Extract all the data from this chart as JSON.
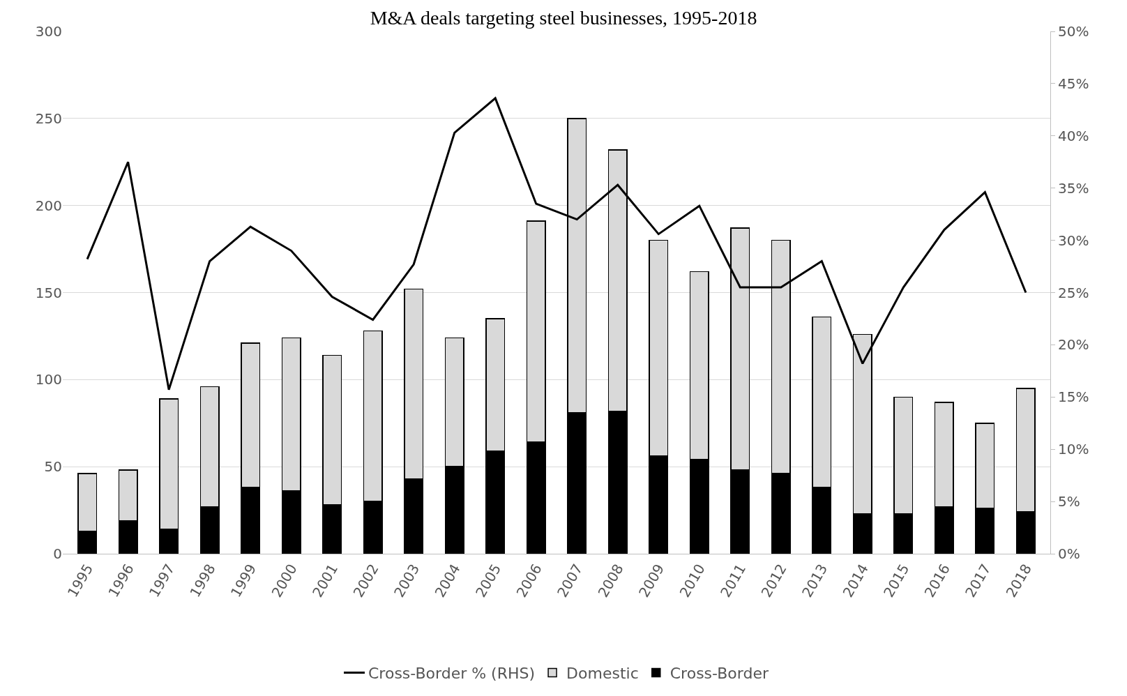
{
  "chart_data": {
    "type": "bar",
    "title": "M&A deals targeting steel businesses, 1995-2018",
    "categories": [
      "1995",
      "1996",
      "1997",
      "1998",
      "1999",
      "2000",
      "2001",
      "2002",
      "2003",
      "2004",
      "2005",
      "2006",
      "2007",
      "2008",
      "2009",
      "2010",
      "2011",
      "2012",
      "2013",
      "2014",
      "2015",
      "2016",
      "2017",
      "2018"
    ],
    "stacked": true,
    "series": [
      {
        "name": "Cross-Border",
        "color": "#000000",
        "values": [
          13,
          19,
          14,
          27,
          38,
          36,
          28,
          30,
          43,
          50,
          59,
          64,
          81,
          82,
          56,
          54,
          48,
          46,
          38,
          23,
          23,
          27,
          26,
          24
        ]
      },
      {
        "name": "Domestic",
        "color": "#d9d9d9",
        "values": [
          33,
          29,
          75,
          69,
          83,
          88,
          86,
          98,
          109,
          74,
          76,
          127,
          169,
          150,
          124,
          108,
          139,
          134,
          98,
          103,
          67,
          60,
          49,
          71
        ]
      },
      {
        "name": "Cross-Border % (RHS)",
        "type": "line",
        "axis": "y2",
        "color": "#000000",
        "values": [
          28.2,
          37.5,
          15.7,
          28,
          31.3,
          29,
          24.6,
          22.4,
          27.7,
          40.3,
          43.6,
          33.5,
          32,
          35.3,
          30.6,
          33.3,
          25.5,
          25.5,
          28,
          18.2,
          25.5,
          31,
          34.6,
          25
        ]
      }
    ],
    "ylim": [
      0,
      300
    ],
    "yticks": [
      0,
      50,
      100,
      150,
      200,
      250,
      300
    ],
    "y2lim": [
      0,
      50
    ],
    "y2ticks": [
      {
        "value": 0,
        "label": "0%"
      },
      {
        "value": 5,
        "label": "5%"
      },
      {
        "value": 10,
        "label": "10%"
      },
      {
        "value": 15,
        "label": "15%"
      },
      {
        "value": 20,
        "label": "20%"
      },
      {
        "value": 25,
        "label": "25%"
      },
      {
        "value": 30,
        "label": "30%"
      },
      {
        "value": 35,
        "label": "35%"
      },
      {
        "value": 40,
        "label": "40%"
      },
      {
        "value": 45,
        "label": "45%"
      },
      {
        "value": 50,
        "label": "50%"
      }
    ],
    "grid": "y",
    "legend": "bottom",
    "marker": "none",
    "line_style": "solid"
  }
}
